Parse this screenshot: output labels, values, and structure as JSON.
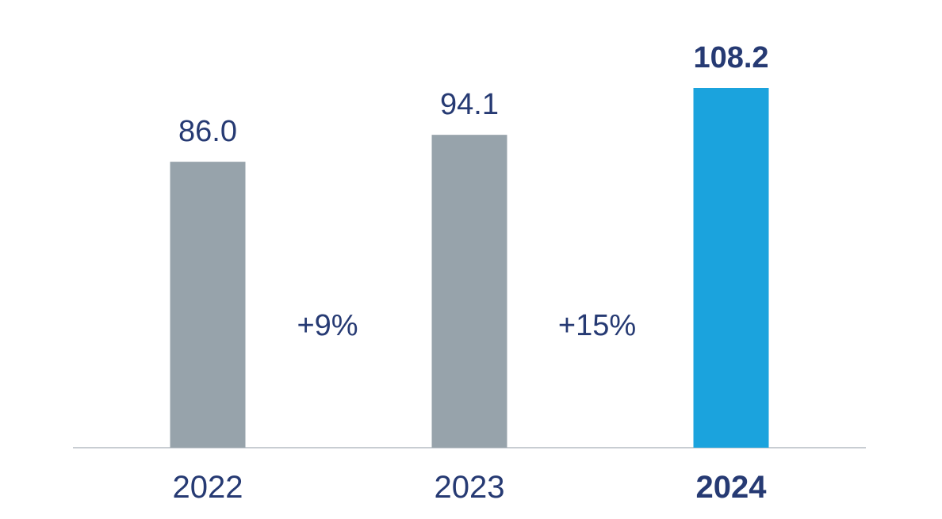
{
  "chart_data": {
    "type": "bar",
    "categories": [
      "2022",
      "2023",
      "2024"
    ],
    "values": [
      86.0,
      94.1,
      108.2
    ],
    "value_labels": [
      "86.0",
      "94.1",
      "108.2"
    ],
    "highlight_index": 2,
    "growth_labels": [
      "+9%",
      "+15%"
    ],
    "ylim": [
      0,
      108.2
    ],
    "grid": false,
    "legend": "none",
    "colors": {
      "bar": "#97a3ab",
      "highlight_bar": "#1ba3dd",
      "text": "#263a73",
      "axis": "#c8cdd2"
    }
  }
}
